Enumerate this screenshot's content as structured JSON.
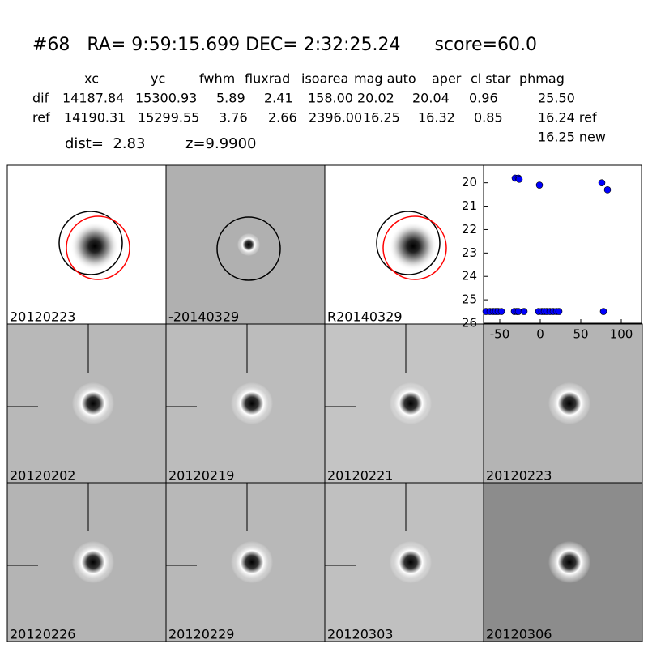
{
  "header": {
    "title": "#68   RA= 9:59:15.699 DEC= 2:32:25.24      score=60.0",
    "columns": [
      "xc",
      "yc",
      "fwhm",
      "fluxrad",
      "isoarea",
      "mag auto",
      "aper",
      "cl star",
      "phmag"
    ],
    "rows": [
      {
        "label": "dif",
        "values": [
          "14187.84",
          "15300.93",
          "5.89",
          "2.41",
          "158.00",
          "20.02",
          "20.04",
          "0.96",
          "25.50"
        ]
      },
      {
        "label": "ref",
        "values": [
          "14190.31",
          "15299.55",
          "3.76",
          "2.66",
          "2396.00",
          "16.25",
          "16.32",
          "0.85",
          "16.24 ref"
        ]
      }
    ],
    "extra": "16.25 new",
    "dist": "dist=  2.83",
    "z": "z=9.9900"
  },
  "stamps": [
    {
      "label": "20120223"
    },
    {
      "label": "-20140329"
    },
    {
      "label": "R20140329"
    },
    {
      "label": "20120202"
    },
    {
      "label": "20120219"
    },
    {
      "label": "20120221"
    },
    {
      "label": "20120223",
      "color": "#ff0000"
    },
    {
      "label": "20120226"
    },
    {
      "label": "20120229"
    },
    {
      "label": "20120303"
    },
    {
      "label": "20120306"
    }
  ],
  "chart_data": {
    "type": "scatter",
    "x": [
      -31,
      -27,
      -26,
      -1,
      76,
      83,
      -67,
      -62,
      -58,
      -55,
      -52,
      -48,
      -32,
      -29,
      -27,
      -20,
      -2,
      2,
      5,
      8,
      12,
      16,
      20,
      23,
      78
    ],
    "values": [
      19.8,
      19.8,
      19.85,
      20.1,
      20.0,
      20.3,
      25.5,
      25.5,
      25.5,
      25.5,
      25.5,
      25.5,
      25.5,
      25.5,
      25.5,
      25.5,
      25.5,
      25.5,
      25.5,
      25.5,
      25.5,
      25.5,
      25.5,
      25.5,
      25.5
    ],
    "color": "#0000ff",
    "xlim": [
      -70,
      125
    ],
    "ylim": [
      26,
      19.25
    ],
    "xticks": [
      -50,
      0,
      50,
      100
    ],
    "yticks": [
      20,
      21,
      22,
      23,
      24,
      25,
      26
    ]
  }
}
